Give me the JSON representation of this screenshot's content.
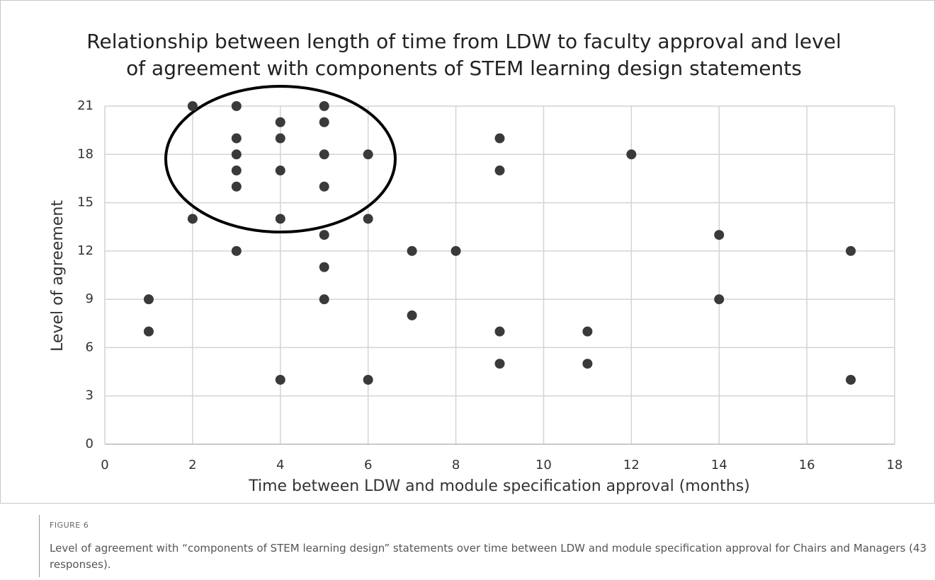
{
  "chart_data": {
    "type": "scatter",
    "title": "Relationship between length of time from LDW to faculty approval and level of agreement with components of STEM learning design statements",
    "xlabel": "Time between LDW and module specification approval (months)",
    "ylabel": "Level of agreement",
    "x": [
      1,
      1,
      2,
      2,
      3,
      3,
      3,
      3,
      3,
      3,
      4,
      4,
      4,
      4,
      4,
      5,
      5,
      5,
      5,
      5,
      5,
      5,
      6,
      6,
      6,
      7,
      7,
      8,
      9,
      9,
      9,
      9,
      11,
      11,
      12,
      14,
      14,
      17,
      17
    ],
    "values": [
      9,
      7,
      21,
      14,
      21,
      19,
      18,
      17,
      16,
      12,
      20,
      19,
      17,
      14,
      4,
      21,
      20,
      18,
      16,
      13,
      11,
      9,
      18,
      14,
      4,
      12,
      8,
      12,
      19,
      17,
      7,
      5,
      7,
      5,
      18,
      13,
      9,
      12,
      4
    ],
    "color": "#3a3a3a",
    "xlim": [
      0,
      18
    ],
    "xticks": [
      0,
      2,
      4,
      6,
      8,
      10,
      12,
      14,
      16,
      18
    ],
    "ylim": [
      0,
      21
    ],
    "yticks": [
      0,
      3,
      6,
      9,
      12,
      15,
      18,
      21
    ],
    "grid": true
  },
  "figure": {
    "label": "FIGURE 6",
    "caption": "Level of agreement with “components of STEM learning design” statements over time between LDW and module specification approval for Chairs and Managers (43 responses)."
  }
}
